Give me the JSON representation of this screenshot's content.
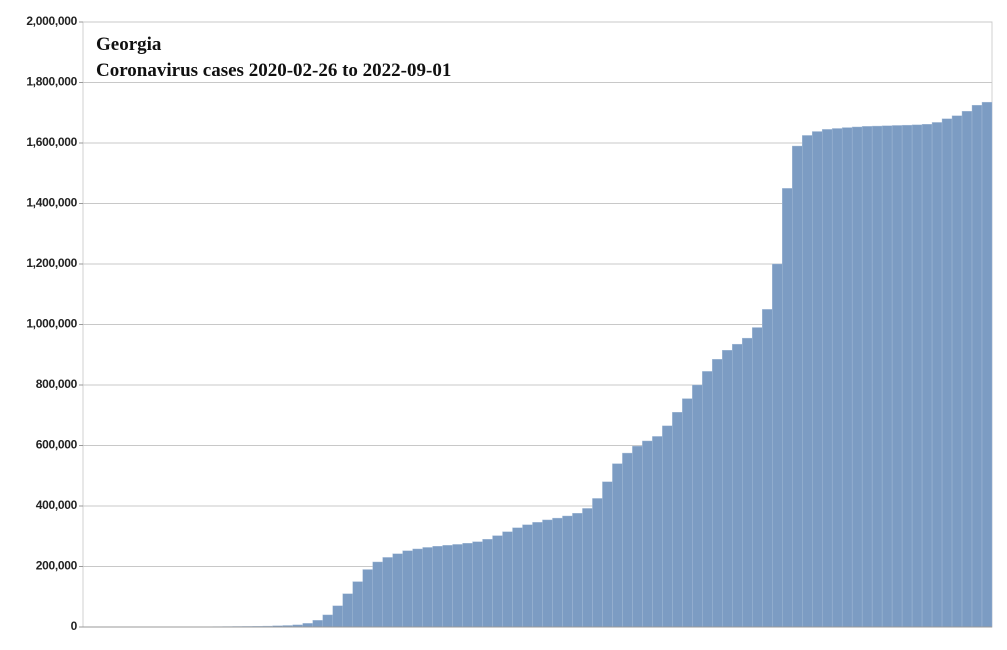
{
  "chart_data": {
    "type": "bar",
    "title": "Georgia",
    "subtitle": "Coronavirus cases 2020-02-26 to 2022-09-01",
    "values": [
      0,
      0,
      0,
      0,
      0,
      0,
      0,
      0,
      0,
      0,
      500,
      800,
      1000,
      1200,
      1500,
      1800,
      2000,
      2500,
      3000,
      4000,
      5000,
      7000,
      12000,
      22000,
      40000,
      70000,
      110000,
      150000,
      190000,
      215000,
      230000,
      242000,
      252000,
      258000,
      263000,
      267000,
      270000,
      273000,
      277000,
      282000,
      290000,
      302000,
      315000,
      328000,
      338000,
      346000,
      354000,
      360000,
      367000,
      376000,
      392000,
      425000,
      480000,
      540000,
      575000,
      598000,
      615000,
      630000,
      665000,
      710000,
      755000,
      800000,
      845000,
      885000,
      915000,
      935000,
      955000,
      990000,
      1050000,
      1200000,
      1450000,
      1590000,
      1625000,
      1638000,
      1645000,
      1648000,
      1651000,
      1653000,
      1655000,
      1656000,
      1657000,
      1658000,
      1659000,
      1660000,
      1662000,
      1668000,
      1680000,
      1690000,
      1705000,
      1725000,
      1735000
    ],
    "color": "#7c9cc3",
    "ylim": [
      0,
      2000000
    ],
    "yticks": [
      0,
      {
        "value": 200000,
        "label": "200,000"
      },
      {
        "value": 400000,
        "label": "400,000"
      },
      {
        "value": 600000,
        "label": "600,000"
      },
      {
        "value": 800000,
        "label": "800,000"
      },
      {
        "value": 1000000,
        "label": "1,000,000"
      },
      {
        "value": 1200000,
        "label": "1,200,000"
      },
      {
        "value": 1400000,
        "label": "1,400,000"
      },
      {
        "value": 1600000,
        "label": "1,600,000"
      },
      {
        "value": 1800000,
        "label": "1,800,000"
      },
      {
        "value": 2000000,
        "label": "2,000,000"
      }
    ],
    "grid": true
  }
}
